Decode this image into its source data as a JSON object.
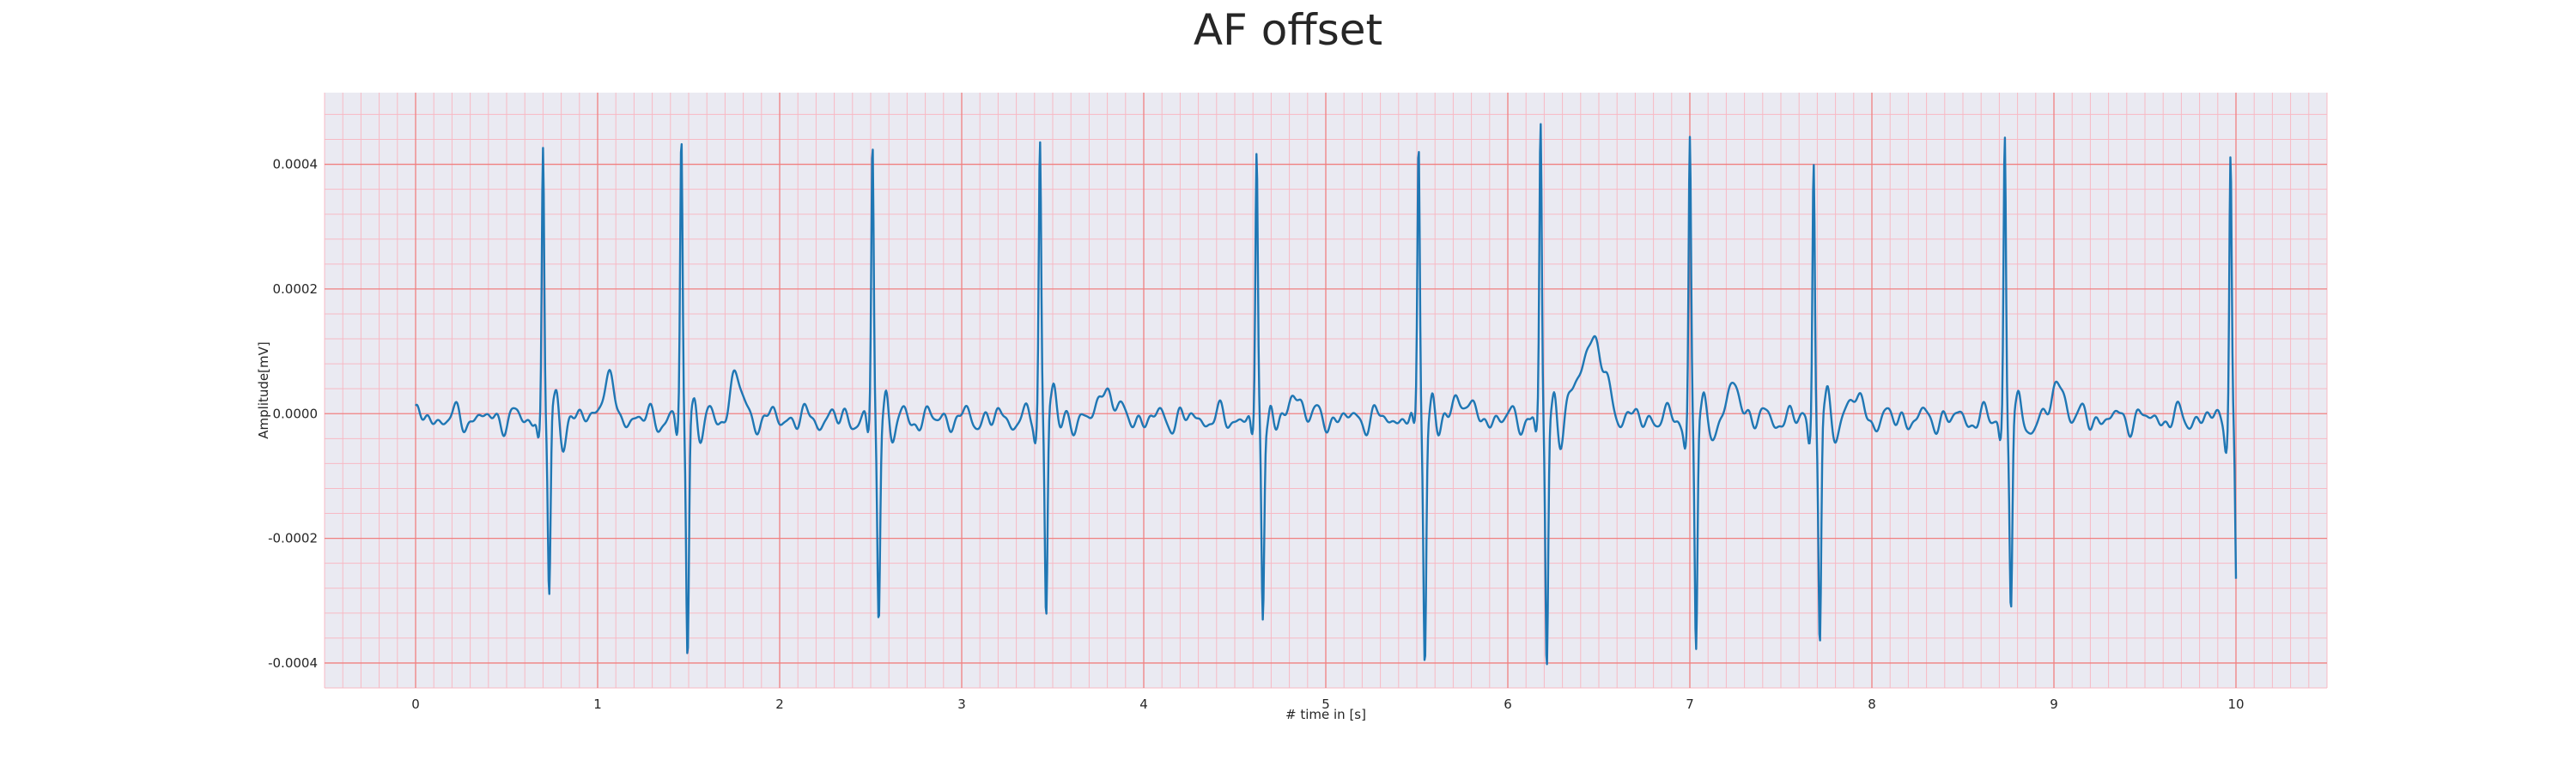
{
  "chart_data": {
    "type": "line",
    "title": "AF offset",
    "xlabel": "# time in [s]",
    "ylabel": "Amplitude[mV]",
    "xlim": [
      -0.5,
      10.5
    ],
    "ylim": [
      -0.00044,
      0.000515
    ],
    "xticks": [
      0,
      1,
      2,
      3,
      4,
      5,
      6,
      7,
      8,
      9,
      10
    ],
    "xtick_labels": [
      "0",
      "1",
      "2",
      "3",
      "4",
      "5",
      "6",
      "7",
      "8",
      "9",
      "10"
    ],
    "yticks": [
      -0.0004,
      -0.0002,
      0,
      0.0002,
      0.0004
    ],
    "ytick_labels": [
      "-0.0004",
      "-0.0002",
      "0.0000",
      "0.0002",
      "0.0004"
    ],
    "grid": true,
    "minor_grid": true,
    "colors": {
      "plot_bg": "#eaeaf2",
      "major_grid": "#f08080",
      "minor_grid": "#f7b9c4",
      "line": "#1f77b4"
    },
    "beats": [
      {
        "t": 0.7,
        "peak": 0.000443,
        "trough": -0.000298
      },
      {
        "t": 1.46,
        "peak": 0.00045,
        "trough": -0.000378
      },
      {
        "t": 2.51,
        "peak": 0.000432,
        "trough": -0.000308
      },
      {
        "t": 3.43,
        "peak": 0.000435,
        "trough": -0.000336
      },
      {
        "t": 4.62,
        "peak": 0.000422,
        "trough": -0.000325
      },
      {
        "t": 5.51,
        "peak": 0.000442,
        "trough": -0.00038
      },
      {
        "t": 6.18,
        "peak": 0.000472,
        "trough": -0.000399
      },
      {
        "t": 7.0,
        "peak": 0.000443,
        "trough": -0.000375
      },
      {
        "t": 7.68,
        "peak": 0.00043,
        "trough": -0.00037
      },
      {
        "t": 8.73,
        "peak": 0.000462,
        "trough": -0.000305
      },
      {
        "t": 9.97,
        "peak": 0.000438,
        "trough": -0.00032
      }
    ],
    "waves": [
      {
        "t": 1.05,
        "amp": 6e-05,
        "width": 0.035
      },
      {
        "t": 1.76,
        "amp": 7e-05,
        "width": 0.03
      },
      {
        "t": 3.48,
        "amp": 3e-05,
        "width": 0.03
      },
      {
        "t": 3.8,
        "amp": 5.5e-05,
        "width": 0.035
      },
      {
        "t": 4.84,
        "amp": 4e-05,
        "width": 0.035
      },
      {
        "t": 5.74,
        "amp": 4e-05,
        "width": 0.035
      },
      {
        "t": 6.46,
        "amp": 0.000128,
        "width": 0.065
      },
      {
        "t": 7.25,
        "amp": 5e-05,
        "width": 0.035
      },
      {
        "t": 7.9,
        "amp": 3.5e-05,
        "width": 0.035
      },
      {
        "t": 9.03,
        "amp": 5.5e-05,
        "width": 0.035
      }
    ],
    "series": [
      {
        "t_start": 0.0,
        "t_end": 10.0,
        "samples": 2600
      }
    ]
  }
}
